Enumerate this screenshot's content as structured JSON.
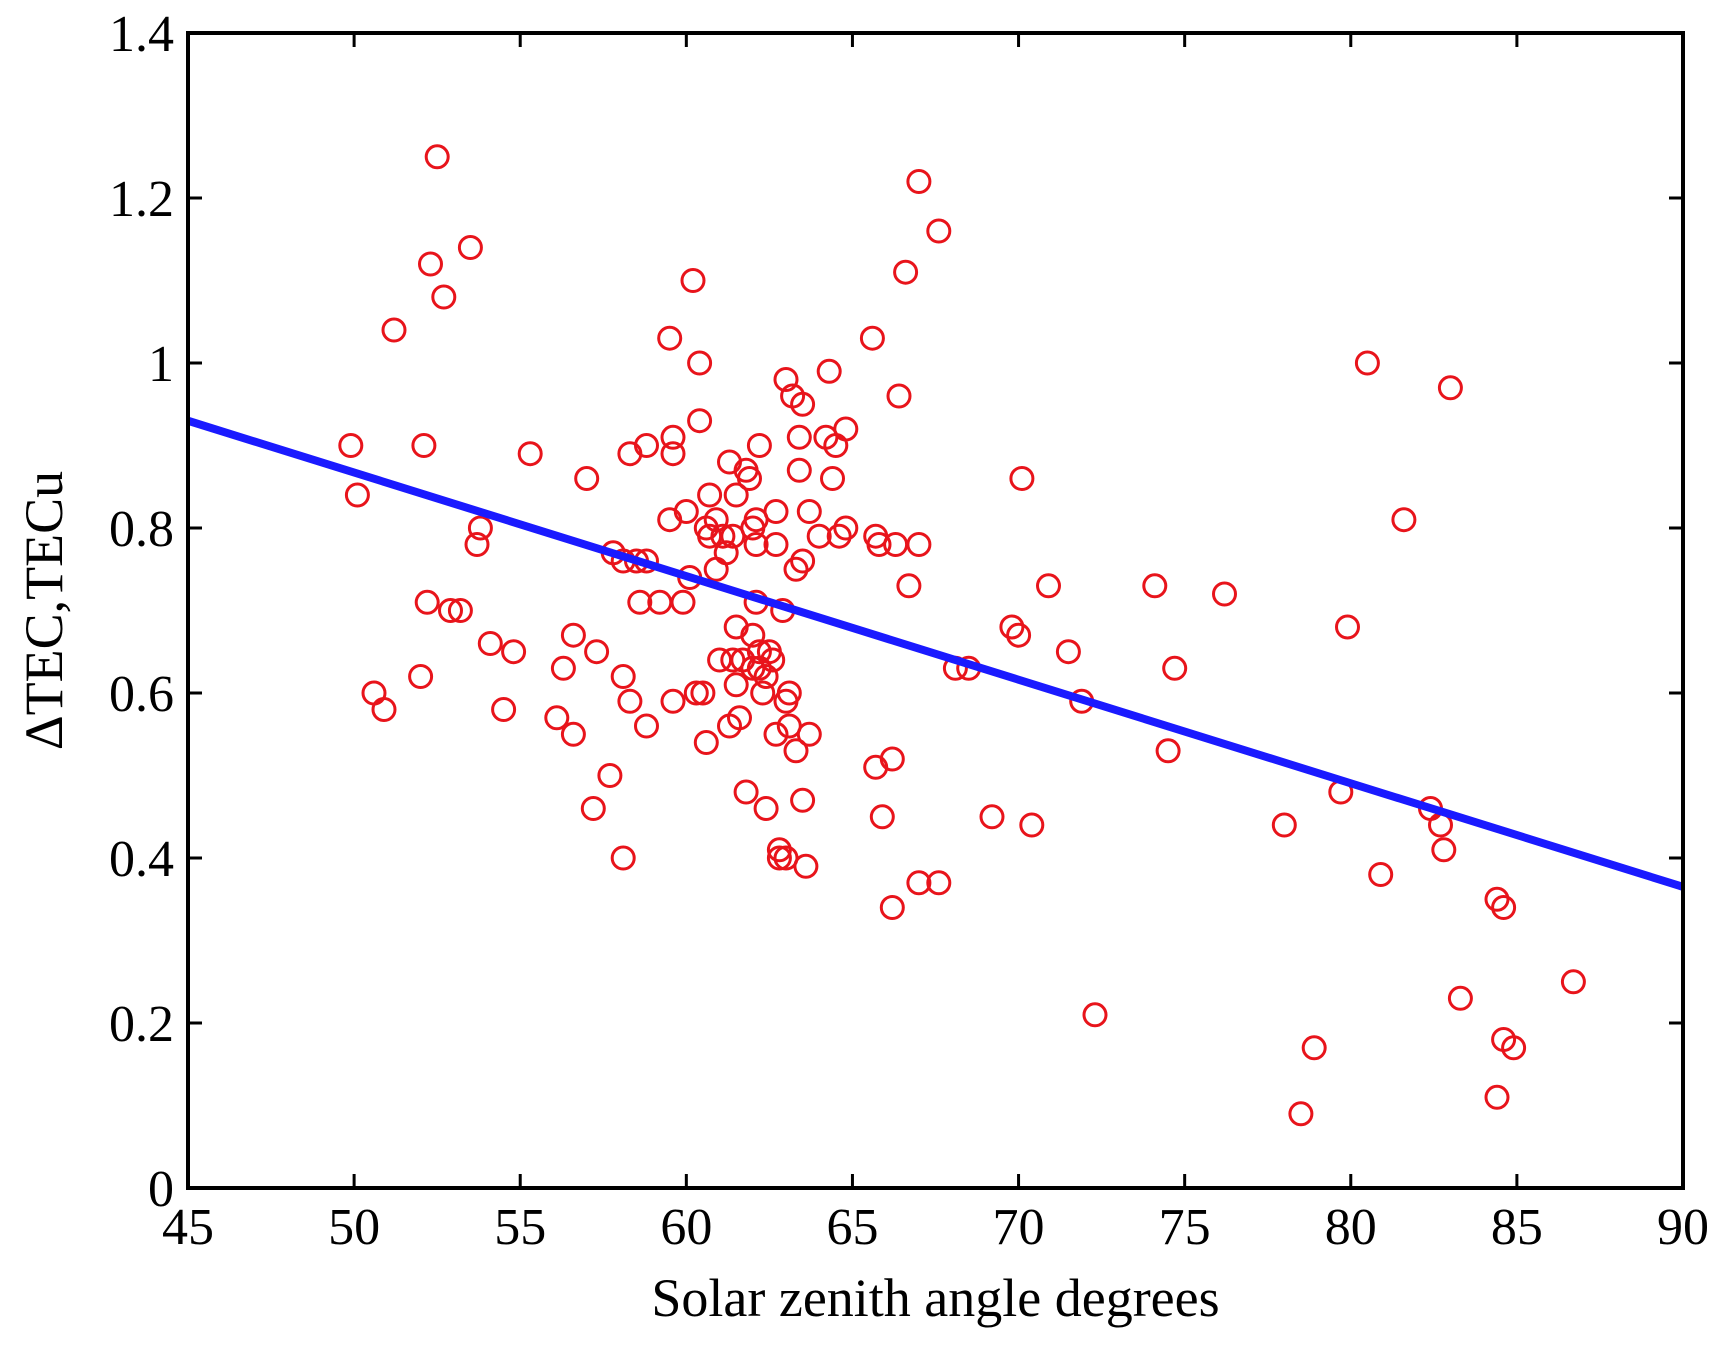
{
  "chart_data": {
    "type": "scatter",
    "xlabel": "Solar zenith angle degrees",
    "ylabel": "ΔTEC,TECu",
    "xlim": [
      45,
      90
    ],
    "ylim": [
      0,
      1.4
    ],
    "x_ticks": [
      "45",
      "50",
      "55",
      "60",
      "65",
      "70",
      "75",
      "80",
      "85",
      "90"
    ],
    "y_ticks": [
      "0",
      "0.2",
      "0.4",
      "0.6",
      "0.8",
      "1",
      "1.2",
      "1.4"
    ],
    "grid": false,
    "legend": "none",
    "marker_color": "#e8141b",
    "line_color": "#1a1aff",
    "points": [
      [
        49.9,
        0.9
      ],
      [
        50.1,
        0.84
      ],
      [
        50.6,
        0.6
      ],
      [
        50.9,
        0.58
      ],
      [
        51.2,
        1.04
      ],
      [
        52.0,
        0.62
      ],
      [
        52.1,
        0.9
      ],
      [
        52.2,
        0.71
      ],
      [
        52.3,
        1.12
      ],
      [
        52.5,
        1.25
      ],
      [
        52.7,
        1.08
      ],
      [
        52.9,
        0.7
      ],
      [
        53.2,
        0.7
      ],
      [
        53.5,
        1.14
      ],
      [
        53.7,
        0.78
      ],
      [
        53.8,
        0.8
      ],
      [
        54.1,
        0.66
      ],
      [
        54.5,
        0.58
      ],
      [
        54.8,
        0.65
      ],
      [
        55.3,
        0.89
      ],
      [
        56.1,
        0.57
      ],
      [
        56.3,
        0.63
      ],
      [
        56.6,
        0.55
      ],
      [
        56.6,
        0.67
      ],
      [
        57.0,
        0.86
      ],
      [
        57.2,
        0.46
      ],
      [
        57.3,
        0.65
      ],
      [
        57.7,
        0.5
      ],
      [
        57.8,
        0.77
      ],
      [
        58.1,
        0.76
      ],
      [
        58.1,
        0.62
      ],
      [
        58.1,
        0.4
      ],
      [
        58.3,
        0.59
      ],
      [
        58.3,
        0.89
      ],
      [
        58.5,
        0.76
      ],
      [
        58.8,
        0.56
      ],
      [
        58.8,
        0.76
      ],
      [
        58.6,
        0.71
      ],
      [
        58.8,
        0.9
      ],
      [
        59.2,
        0.71
      ],
      [
        59.5,
        1.03
      ],
      [
        59.5,
        0.81
      ],
      [
        59.6,
        0.59
      ],
      [
        59.6,
        0.89
      ],
      [
        59.6,
        0.91
      ],
      [
        59.9,
        0.71
      ],
      [
        60.0,
        0.82
      ],
      [
        60.1,
        0.74
      ],
      [
        60.2,
        1.1
      ],
      [
        60.3,
        0.6
      ],
      [
        60.4,
        0.93
      ],
      [
        60.4,
        1.0
      ],
      [
        60.5,
        0.6
      ],
      [
        60.6,
        0.54
      ],
      [
        60.6,
        0.8
      ],
      [
        60.7,
        0.84
      ],
      [
        60.7,
        0.79
      ],
      [
        60.9,
        0.75
      ],
      [
        60.9,
        0.81
      ],
      [
        61.0,
        0.64
      ],
      [
        61.1,
        0.79
      ],
      [
        61.2,
        0.77
      ],
      [
        61.3,
        0.56
      ],
      [
        61.3,
        0.88
      ],
      [
        61.4,
        0.64
      ],
      [
        61.4,
        0.79
      ],
      [
        61.5,
        0.61
      ],
      [
        61.5,
        0.68
      ],
      [
        61.5,
        0.84
      ],
      [
        61.6,
        0.57
      ],
      [
        61.7,
        0.64
      ],
      [
        61.8,
        0.87
      ],
      [
        61.8,
        0.48
      ],
      [
        61.9,
        0.86
      ],
      [
        62.0,
        0.67
      ],
      [
        62.0,
        0.8
      ],
      [
        62.0,
        0.63
      ],
      [
        62.1,
        0.78
      ],
      [
        62.1,
        0.71
      ],
      [
        62.1,
        0.81
      ],
      [
        62.2,
        0.9
      ],
      [
        62.2,
        0.65
      ],
      [
        62.2,
        0.63
      ],
      [
        62.3,
        0.6
      ],
      [
        62.4,
        0.46
      ],
      [
        62.4,
        0.62
      ],
      [
        62.5,
        0.65
      ],
      [
        62.6,
        0.64
      ],
      [
        62.7,
        0.55
      ],
      [
        62.7,
        0.82
      ],
      [
        62.7,
        0.78
      ],
      [
        62.8,
        0.41
      ],
      [
        62.8,
        0.4
      ],
      [
        62.9,
        0.7
      ],
      [
        63.0,
        0.98
      ],
      [
        63.0,
        0.59
      ],
      [
        63.0,
        0.4
      ],
      [
        63.1,
        0.56
      ],
      [
        63.1,
        0.6
      ],
      [
        63.2,
        0.96
      ],
      [
        63.3,
        0.53
      ],
      [
        63.3,
        0.75
      ],
      [
        63.4,
        0.87
      ],
      [
        63.4,
        0.91
      ],
      [
        63.5,
        0.95
      ],
      [
        63.5,
        0.47
      ],
      [
        63.5,
        0.76
      ],
      [
        63.6,
        0.39
      ],
      [
        63.7,
        0.82
      ],
      [
        63.7,
        0.55
      ],
      [
        64.0,
        0.79
      ],
      [
        64.2,
        0.91
      ],
      [
        64.3,
        0.99
      ],
      [
        64.4,
        0.86
      ],
      [
        64.5,
        0.9
      ],
      [
        64.6,
        0.79
      ],
      [
        64.8,
        0.92
      ],
      [
        64.8,
        0.8
      ],
      [
        65.6,
        1.03
      ],
      [
        65.7,
        0.51
      ],
      [
        65.7,
        0.79
      ],
      [
        65.8,
        0.78
      ],
      [
        65.9,
        0.45
      ],
      [
        66.2,
        0.52
      ],
      [
        66.2,
        0.34
      ],
      [
        66.3,
        0.78
      ],
      [
        66.4,
        0.96
      ],
      [
        66.6,
        1.11
      ],
      [
        66.7,
        0.73
      ],
      [
        67.0,
        1.22
      ],
      [
        67.0,
        0.78
      ],
      [
        67.0,
        0.37
      ],
      [
        67.6,
        1.16
      ],
      [
        67.6,
        0.37
      ],
      [
        68.1,
        0.63
      ],
      [
        68.5,
        0.63
      ],
      [
        69.2,
        0.45
      ],
      [
        69.8,
        0.68
      ],
      [
        70.0,
        0.67
      ],
      [
        70.1,
        0.86
      ],
      [
        70.4,
        0.44
      ],
      [
        70.9,
        0.73
      ],
      [
        71.5,
        0.65
      ],
      [
        71.9,
        0.59
      ],
      [
        72.3,
        0.21
      ],
      [
        74.1,
        0.73
      ],
      [
        74.5,
        0.53
      ],
      [
        74.7,
        0.63
      ],
      [
        76.2,
        0.72
      ],
      [
        78.0,
        0.44
      ],
      [
        78.5,
        0.09
      ],
      [
        78.9,
        0.17
      ],
      [
        79.7,
        0.48
      ],
      [
        79.9,
        0.68
      ],
      [
        80.5,
        1.0
      ],
      [
        80.9,
        0.38
      ],
      [
        81.6,
        0.81
      ],
      [
        82.4,
        0.46
      ],
      [
        82.7,
        0.44
      ],
      [
        82.8,
        0.41
      ],
      [
        83.0,
        0.97
      ],
      [
        83.3,
        0.23
      ],
      [
        84.4,
        0.11
      ],
      [
        84.4,
        0.35
      ],
      [
        84.6,
        0.34
      ],
      [
        84.6,
        0.18
      ],
      [
        84.9,
        0.17
      ],
      [
        86.7,
        0.25
      ]
    ],
    "fit_line": {
      "x": [
        45,
        90
      ],
      "y": [
        0.93,
        0.365
      ]
    }
  }
}
